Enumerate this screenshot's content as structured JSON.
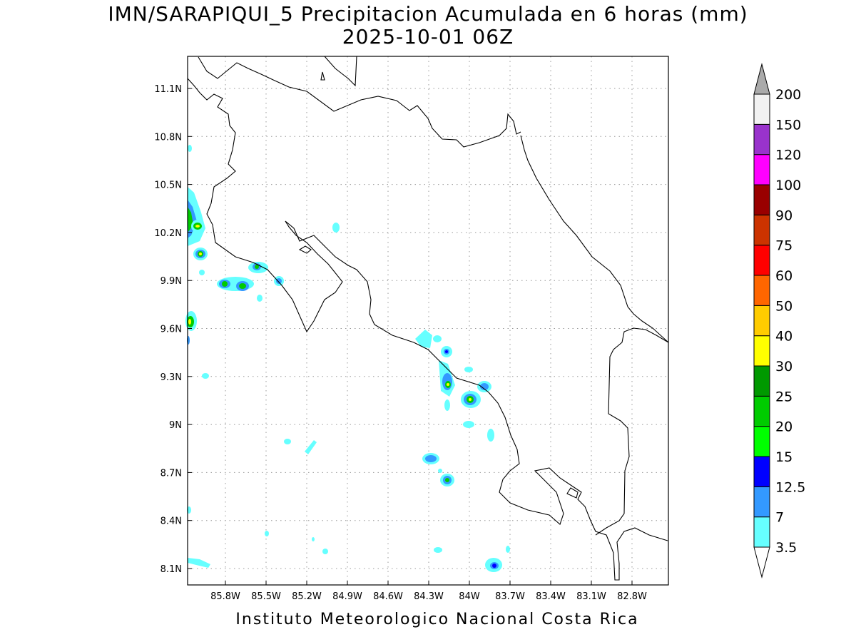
{
  "title": {
    "line1": "IMN/SARAPIQUI_5 Precipitacion Acumulada en 6 horas (mm)",
    "line2": "2025-10-01 06Z"
  },
  "footer": "Instituto Meteorologico Nacional Costa Rica",
  "map": {
    "lat_ticks": [
      "11.1N",
      "10.8N",
      "10.5N",
      "10.2N",
      "9.9N",
      "9.6N",
      "9.3N",
      "9N",
      "8.7N",
      "8.4N",
      "8.1N"
    ],
    "lon_ticks": [
      "85.8W",
      "85.5W",
      "85.2W",
      "84.9W",
      "84.6W",
      "84.3W",
      "84W",
      "83.7W",
      "83.4W",
      "83.1W",
      "82.8W"
    ],
    "grid": true
  },
  "colorbar": {
    "levels": [
      "3.5",
      "7",
      "12.5",
      "15",
      "20",
      "25",
      "30",
      "40",
      "50",
      "60",
      "75",
      "90",
      "100",
      "120",
      "150",
      "200"
    ],
    "colors": [
      "#66ffff",
      "#3399ff",
      "#0000ff",
      "#00ff00",
      "#00cc00",
      "#009900",
      "#ffff00",
      "#ffcc00",
      "#ff6600",
      "#ff0000",
      "#cc3300",
      "#990000",
      "#ff00ff",
      "#9933cc",
      "#f2f2f2"
    ],
    "over_color": "#aaaaaa",
    "under_color": "#ffffff"
  }
}
